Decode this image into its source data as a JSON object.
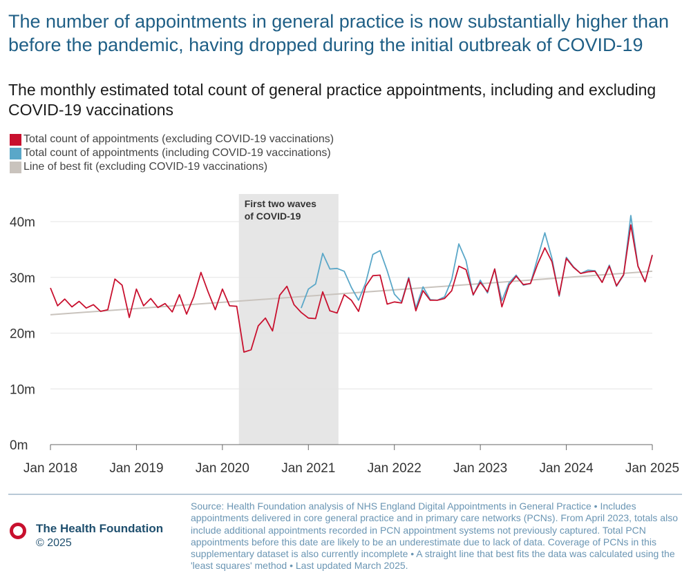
{
  "title": "The number of appointments in general practice is now substantially higher than before the pandemic, having dropped during the initial outbreak of COVID-19",
  "subtitle": "The monthly estimated total count of general practice appointments, including and excluding COVID-19 vaccinations",
  "legend": [
    {
      "label": "Total count of appointments (excluding COVID-19 vaccinations)",
      "color": "#c8102e"
    },
    {
      "label": "Total count of appointments (including COVID-19 vaccinations)",
      "color": "#5aa7c8"
    },
    {
      "label": "Line of best fit (excluding COVID-19 vaccinations)",
      "color": "#c9c3bd"
    }
  ],
  "chart_data": {
    "type": "line",
    "title": "The monthly estimated total count of general practice appointments, including and excluding COVID-19 vaccinations",
    "xlabel": "",
    "ylabel": "",
    "x_start": "Jan 2018",
    "x_end": "Jan 2025",
    "xlim": [
      0,
      84
    ],
    "ylim": [
      0,
      40
    ],
    "y_ticks": [
      0,
      10,
      20,
      30,
      40
    ],
    "y_tick_labels": [
      "0m",
      "10m",
      "20m",
      "30m",
      "40m"
    ],
    "x_ticks": [
      0,
      12,
      24,
      36,
      48,
      60,
      72,
      84
    ],
    "x_tick_labels": [
      "Jan 2018",
      "Jan 2019",
      "Jan 2020",
      "Jan 2021",
      "Jan 2022",
      "Jan 2023",
      "Jan 2024",
      "Jan 2025"
    ],
    "grid": true,
    "annotation": {
      "label_lines": [
        "First two waves",
        "of COVID-19"
      ],
      "x_from": 26.3,
      "x_to": 40.2
    },
    "series": [
      {
        "name": "Total count of appointments (excluding COVID-19 vaccinations)",
        "color": "#c8102e",
        "x_start": 0,
        "values": [
          28.1,
          24.9,
          26.1,
          24.7,
          25.7,
          24.5,
          25.1,
          23.9,
          24.2,
          29.7,
          28.6,
          22.8,
          27.9,
          24.9,
          26.2,
          24.6,
          25.3,
          23.8,
          26.9,
          23.4,
          26.5,
          30.9,
          27.4,
          24.2,
          27.9,
          24.9,
          24.8,
          16.6,
          17.0,
          21.3,
          22.7,
          20.4,
          26.8,
          28.4,
          25.1,
          23.7,
          22.7,
          22.6,
          27.4,
          24.0,
          23.6,
          26.9,
          25.9,
          23.9,
          28.4,
          30.3,
          30.4,
          25.2,
          25.6,
          25.4,
          29.8,
          24.0,
          27.6,
          25.9,
          25.9,
          26.2,
          27.6,
          32.0,
          31.4,
          26.9,
          29.1,
          27.4,
          31.5,
          24.7,
          28.6,
          30.2,
          28.7,
          28.9,
          32.4,
          35.3,
          32.8,
          26.8,
          33.4,
          31.8,
          30.7,
          31.0,
          31.1,
          29.1,
          32.0,
          28.5,
          30.5,
          39.4,
          32.0,
          29.2,
          34.0
        ]
      },
      {
        "name": "Total count of appointments (including COVID-19 vaccinations)",
        "color": "#5aa7c8",
        "x_start": 35,
        "values": [
          24.5,
          27.9,
          28.8,
          34.3,
          31.5,
          31.6,
          31.1,
          28.2,
          25.9,
          29.0,
          34.1,
          34.8,
          31.2,
          27.0,
          25.6,
          30.0,
          24.5,
          28.3,
          26.0,
          25.9,
          26.5,
          29.6,
          36.0,
          33.0,
          26.8,
          29.5,
          27.2,
          31.5,
          25.8,
          29.0,
          30.4,
          28.6,
          28.9,
          33.5,
          38.0,
          33.4,
          26.6,
          33.6,
          31.9,
          30.7,
          31.3,
          31.2,
          29.1,
          32.2,
          28.4,
          30.4,
          41.1,
          32.0,
          29.2,
          34.0
        ]
      },
      {
        "name": "Line of best fit (excluding COVID-19 vaccinations)",
        "color": "#c9c3bd",
        "x": [
          0,
          84
        ],
        "values": [
          23.3,
          31.1
        ]
      }
    ]
  },
  "footer": {
    "brand_name": "The Health Foundation",
    "copyright": "© 2025",
    "source": "Source: Health Foundation analysis of NHS England Digital Appointments in General Practice • Includes appointments delivered in core general practice and in primary care networks (PCNs). From April 2023, totals also include additional appointments recorded in PCN appointment systems not previously captured. Total PCN appointments before this date are likely to be an underestimate due to lack of data. Coverage of PCNs in this supplementary dataset is also currently incomplete • A straight line that best fits the data was calculated using the 'least squares' method • Last updated March 2025."
  }
}
